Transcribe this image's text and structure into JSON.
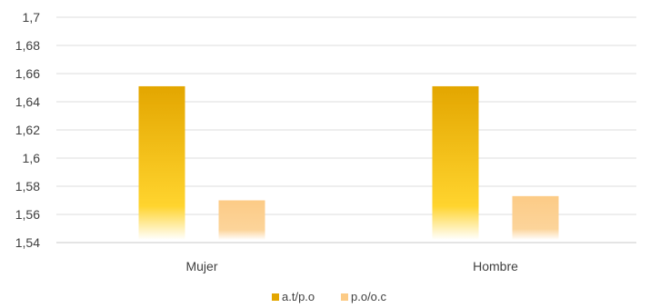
{
  "chart_data": {
    "type": "bar",
    "categories": [
      "Mujer",
      "Hombre"
    ],
    "series": [
      {
        "name": "a.t/p.o",
        "values": [
          1.651,
          1.651
        ],
        "color": "#E3A600"
      },
      {
        "name": "p.o/o.c",
        "values": [
          1.57,
          1.573
        ],
        "color": "#FCCB86"
      }
    ],
    "ylim": [
      1.54,
      1.7
    ],
    "yticks": [
      "1,54",
      "1,56",
      "1,58",
      "1,6",
      "1,62",
      "1,64",
      "1,66",
      "1,68",
      "1,7"
    ],
    "ytick_values": [
      1.54,
      1.56,
      1.58,
      1.6,
      1.62,
      1.64,
      1.66,
      1.68,
      1.7
    ],
    "grid": true,
    "legend": "bottom",
    "title": "",
    "xlabel": "",
    "ylabel": ""
  }
}
